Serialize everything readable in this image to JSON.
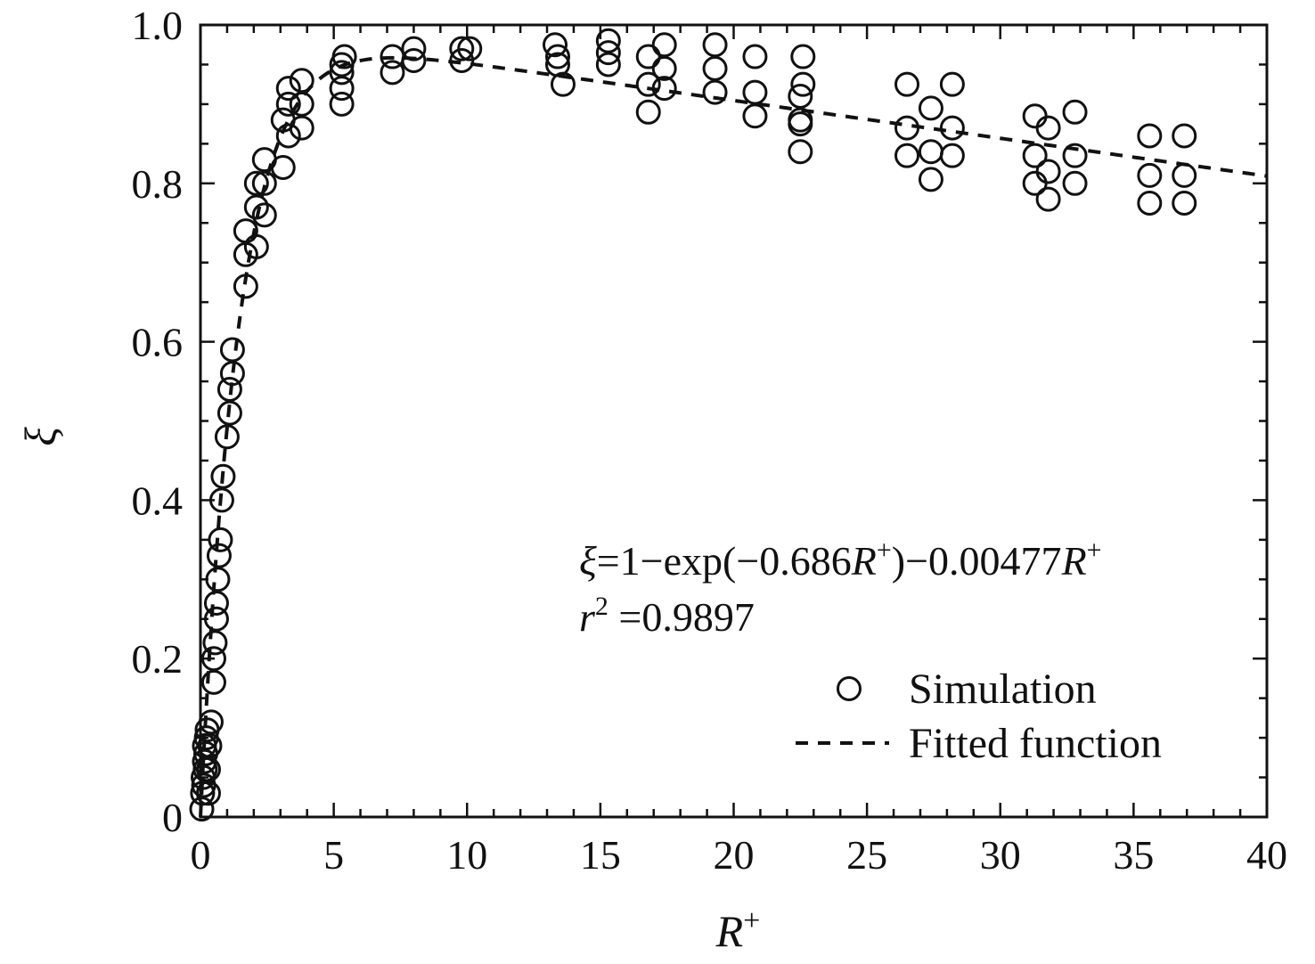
{
  "chart_data": {
    "type": "scatter",
    "xlabel": "R",
    "xlabel_sup": "+",
    "ylabel": "ξ",
    "xlim": [
      0,
      40
    ],
    "ylim": [
      0,
      1.0
    ],
    "x_ticks": [
      0,
      5,
      10,
      15,
      20,
      25,
      30,
      35,
      40
    ],
    "x_tick_labels": [
      "0",
      "5",
      "10",
      "15",
      "20",
      "25",
      "30",
      "35",
      "40"
    ],
    "y_ticks": [
      0,
      0.2,
      0.4,
      0.6,
      0.8,
      1.0
    ],
    "y_tick_labels": [
      "0",
      "0.2",
      "0.4",
      "0.6",
      "0.8",
      "1.0"
    ],
    "x_minor_step": 1,
    "y_minor_step": 0.05,
    "grid": false,
    "legend_position": "bottom-right",
    "annotation": {
      "equation_parts": [
        "ξ",
        "=1−exp(−0.686",
        "R",
        "+",
        ")−0.00477",
        "R",
        "+"
      ],
      "r2_parts": [
        "r",
        "2",
        " =0.9897"
      ]
    },
    "series": [
      {
        "name": "Simulation",
        "marker": "open-circle",
        "color": "#111111",
        "points": [
          [
            0.05,
            0.01
          ],
          [
            0.08,
            0.03
          ],
          [
            0.1,
            0.05
          ],
          [
            0.12,
            0.04
          ],
          [
            0.15,
            0.07
          ],
          [
            0.15,
            0.09
          ],
          [
            0.18,
            0.06
          ],
          [
            0.2,
            0.08
          ],
          [
            0.22,
            0.1
          ],
          [
            0.25,
            0.11
          ],
          [
            0.3,
            0.03
          ],
          [
            0.3,
            0.06
          ],
          [
            0.35,
            0.09
          ],
          [
            0.4,
            0.12
          ],
          [
            0.5,
            0.17
          ],
          [
            0.5,
            0.2
          ],
          [
            0.55,
            0.22
          ],
          [
            0.6,
            0.25
          ],
          [
            0.6,
            0.27
          ],
          [
            0.65,
            0.3
          ],
          [
            0.7,
            0.33
          ],
          [
            0.75,
            0.35
          ],
          [
            0.8,
            0.4
          ],
          [
            0.85,
            0.43
          ],
          [
            1.0,
            0.48
          ],
          [
            1.1,
            0.51
          ],
          [
            1.1,
            0.54
          ],
          [
            1.2,
            0.56
          ],
          [
            1.2,
            0.59
          ],
          [
            1.7,
            0.67
          ],
          [
            1.7,
            0.71
          ],
          [
            1.7,
            0.74
          ],
          [
            2.1,
            0.72
          ],
          [
            2.1,
            0.77
          ],
          [
            2.1,
            0.8
          ],
          [
            2.4,
            0.76
          ],
          [
            2.4,
            0.8
          ],
          [
            2.4,
            0.83
          ],
          [
            3.1,
            0.82
          ],
          [
            3.1,
            0.88
          ],
          [
            3.3,
            0.86
          ],
          [
            3.3,
            0.9
          ],
          [
            3.3,
            0.92
          ],
          [
            3.8,
            0.87
          ],
          [
            3.8,
            0.9
          ],
          [
            3.8,
            0.93
          ],
          [
            5.3,
            0.9
          ],
          [
            5.3,
            0.92
          ],
          [
            5.3,
            0.94
          ],
          [
            5.3,
            0.95
          ],
          [
            5.4,
            0.96
          ],
          [
            7.2,
            0.94
          ],
          [
            7.2,
            0.96
          ],
          [
            8.0,
            0.955
          ],
          [
            8.0,
            0.97
          ],
          [
            9.8,
            0.955
          ],
          [
            9.8,
            0.97
          ],
          [
            10.1,
            0.97
          ],
          [
            13.3,
            0.975
          ],
          [
            13.4,
            0.95
          ],
          [
            13.4,
            0.96
          ],
          [
            13.6,
            0.925
          ],
          [
            15.3,
            0.95
          ],
          [
            15.3,
            0.98
          ],
          [
            15.3,
            0.965
          ],
          [
            16.8,
            0.89
          ],
          [
            16.8,
            0.925
          ],
          [
            16.8,
            0.96
          ],
          [
            17.4,
            0.92
          ],
          [
            17.4,
            0.945
          ],
          [
            17.4,
            0.975
          ],
          [
            19.3,
            0.915
          ],
          [
            19.3,
            0.945
          ],
          [
            19.3,
            0.975
          ],
          [
            20.8,
            0.885
          ],
          [
            20.8,
            0.915
          ],
          [
            20.8,
            0.96
          ],
          [
            22.5,
            0.84
          ],
          [
            22.5,
            0.875
          ],
          [
            22.5,
            0.91
          ],
          [
            22.6,
            0.925
          ],
          [
            22.6,
            0.96
          ],
          [
            22.5,
            0.88
          ],
          [
            26.5,
            0.835
          ],
          [
            26.5,
            0.87
          ],
          [
            26.5,
            0.925
          ],
          [
            27.4,
            0.805
          ],
          [
            27.4,
            0.84
          ],
          [
            27.4,
            0.895
          ],
          [
            28.2,
            0.835
          ],
          [
            28.2,
            0.87
          ],
          [
            28.2,
            0.925
          ],
          [
            31.3,
            0.8
          ],
          [
            31.3,
            0.835
          ],
          [
            31.3,
            0.885
          ],
          [
            31.8,
            0.78
          ],
          [
            31.8,
            0.815
          ],
          [
            31.8,
            0.87
          ],
          [
            32.8,
            0.8
          ],
          [
            32.8,
            0.835
          ],
          [
            32.8,
            0.89
          ],
          [
            35.6,
            0.775
          ],
          [
            35.6,
            0.81
          ],
          [
            35.6,
            0.86
          ],
          [
            36.9,
            0.775
          ],
          [
            36.9,
            0.81
          ],
          [
            36.9,
            0.86
          ]
        ]
      },
      {
        "name": "Fitted function",
        "style": "dashed",
        "color": "#111111",
        "function": {
          "a": 0.686,
          "b": 0.00477
        }
      }
    ]
  }
}
